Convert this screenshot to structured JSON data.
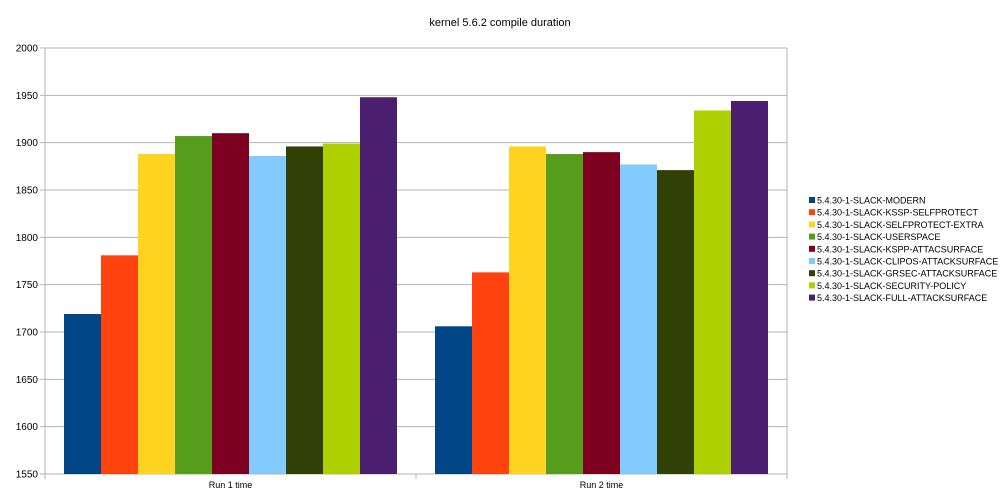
{
  "chart_data": {
    "type": "bar",
    "title": "kernel 5.6.2 compile duration",
    "xlabel": "",
    "ylabel": "",
    "ylim": [
      1550,
      2000
    ],
    "yticks": [
      1550,
      1600,
      1650,
      1700,
      1750,
      1800,
      1850,
      1900,
      1950,
      2000
    ],
    "grid": true,
    "legend_position": "right",
    "categories": [
      "Run 1 time",
      "Run 2 time"
    ],
    "series": [
      {
        "name": "5.4.30-1-SLACK-MODERN",
        "color": "#004586",
        "values": [
          1719,
          1706
        ]
      },
      {
        "name": "5.4.30-1-SLACK-KSSP-SELFPROTECT",
        "color": "#ff420e",
        "values": [
          1781,
          1763
        ]
      },
      {
        "name": "5.4.30-1-SLACK-SELFPROTECT-EXTRA",
        "color": "#ffd320",
        "values": [
          1888,
          1896
        ]
      },
      {
        "name": "5.4.30-1-SLACK-USERSPACE",
        "color": "#579d1c",
        "values": [
          1907,
          1888
        ]
      },
      {
        "name": "5.4.30-1-SLACK-KSPP-ATTACSURFACE",
        "color": "#7e0021",
        "values": [
          1910,
          1890
        ]
      },
      {
        "name": "5.4.30-1-SLACK-CLIPOS-ATTACKSURFACE",
        "color": "#83caff",
        "values": [
          1886,
          1877
        ]
      },
      {
        "name": "5.4.30-1-SLACK-GRSEC-ATTACKSURFACE",
        "color": "#314004",
        "values": [
          1896,
          1871
        ]
      },
      {
        "name": "5.4.30-1-SLACK-SECURITY-POLICY",
        "color": "#aecf00",
        "values": [
          1899,
          1934
        ]
      },
      {
        "name": "5.4.30-1-SLACK-FULL-ATTACKSURFACE",
        "color": "#4b1f6f",
        "values": [
          1948,
          1944
        ]
      }
    ]
  }
}
